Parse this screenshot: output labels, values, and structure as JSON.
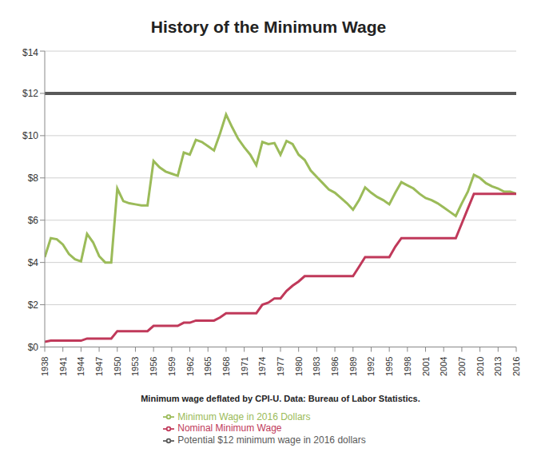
{
  "chart_data": {
    "type": "line",
    "title": "History of the Minimum Wage",
    "xlabel": "Minimum wage deflated by CPI-U. Data: Bureau of Labor Statistics.",
    "x": [
      1938,
      1939,
      1940,
      1941,
      1942,
      1943,
      1944,
      1945,
      1946,
      1947,
      1948,
      1949,
      1950,
      1951,
      1952,
      1953,
      1954,
      1955,
      1956,
      1957,
      1958,
      1959,
      1960,
      1961,
      1962,
      1963,
      1964,
      1965,
      1966,
      1967,
      1968,
      1969,
      1970,
      1971,
      1972,
      1973,
      1974,
      1975,
      1976,
      1977,
      1978,
      1979,
      1980,
      1981,
      1982,
      1983,
      1984,
      1985,
      1986,
      1987,
      1988,
      1989,
      1990,
      1991,
      1992,
      1993,
      1994,
      1995,
      1996,
      1997,
      1998,
      1999,
      2000,
      2001,
      2002,
      2003,
      2004,
      2005,
      2006,
      2007,
      2008,
      2009,
      2010,
      2011,
      2012,
      2013,
      2014,
      2015,
      2016
    ],
    "series": [
      {
        "name": "Potential $12 minimum wage in 2016 dollars",
        "color": "#595959",
        "values": [
          12,
          12,
          12,
          12,
          12,
          12,
          12,
          12,
          12,
          12,
          12,
          12,
          12,
          12,
          12,
          12,
          12,
          12,
          12,
          12,
          12,
          12,
          12,
          12,
          12,
          12,
          12,
          12,
          12,
          12,
          12,
          12,
          12,
          12,
          12,
          12,
          12,
          12,
          12,
          12,
          12,
          12,
          12,
          12,
          12,
          12,
          12,
          12,
          12,
          12,
          12,
          12,
          12,
          12,
          12,
          12,
          12,
          12,
          12,
          12,
          12,
          12,
          12,
          12,
          12,
          12,
          12,
          12,
          12,
          12,
          12,
          12,
          12,
          12,
          12,
          12,
          12,
          12,
          12
        ]
      },
      {
        "name": "Minimum Wage in 2016 Dollars",
        "color": "#9bbb59",
        "values": [
          4.25,
          5.15,
          5.1,
          4.85,
          4.4,
          4.15,
          4.05,
          5.35,
          4.95,
          4.3,
          4,
          4,
          7.5,
          6.9,
          6.8,
          6.75,
          6.7,
          6.7,
          8.8,
          8.5,
          8.3,
          8.2,
          8.1,
          9.2,
          9.1,
          9.8,
          9.7,
          9.5,
          9.3,
          10.1,
          11,
          10.4,
          9.85,
          9.45,
          9.1,
          8.6,
          9.7,
          9.6,
          9.65,
          9.1,
          9.75,
          9.6,
          9.1,
          8.85,
          8.35,
          8.05,
          7.75,
          7.45,
          7.3,
          7.05,
          6.8,
          6.5,
          6.95,
          7.55,
          7.3,
          7.1,
          6.95,
          6.75,
          7.3,
          7.8,
          7.65,
          7.5,
          7.25,
          7.05,
          6.95,
          6.8,
          6.6,
          6.4,
          6.2,
          6.8,
          7.35,
          8.15,
          8,
          7.75,
          7.6,
          7.5,
          7.35,
          7.35,
          7.25
        ]
      },
      {
        "name": "Nominal Minimum Wage",
        "color": "#c0395a",
        "values": [
          0.25,
          0.3,
          0.3,
          0.3,
          0.3,
          0.3,
          0.3,
          0.4,
          0.4,
          0.4,
          0.4,
          0.4,
          0.75,
          0.75,
          0.75,
          0.75,
          0.75,
          0.75,
          1,
          1,
          1,
          1,
          1,
          1.15,
          1.15,
          1.25,
          1.25,
          1.25,
          1.25,
          1.4,
          1.6,
          1.6,
          1.6,
          1.6,
          1.6,
          1.6,
          2,
          2.1,
          2.3,
          2.3,
          2.65,
          2.9,
          3.1,
          3.35,
          3.35,
          3.35,
          3.35,
          3.35,
          3.35,
          3.35,
          3.35,
          3.35,
          3.8,
          4.25,
          4.25,
          4.25,
          4.25,
          4.25,
          4.75,
          5.15,
          5.15,
          5.15,
          5.15,
          5.15,
          5.15,
          5.15,
          5.15,
          5.15,
          5.15,
          5.85,
          6.55,
          7.25,
          7.25,
          7.25,
          7.25,
          7.25,
          7.25,
          7.25,
          7.25
        ]
      }
    ],
    "xlim": [
      1938,
      2016
    ],
    "xticks": [
      1938,
      1941,
      1944,
      1947,
      1950,
      1953,
      1956,
      1959,
      1962,
      1965,
      1968,
      1971,
      1974,
      1977,
      1980,
      1983,
      1986,
      1989,
      1992,
      1995,
      1998,
      2001,
      2004,
      2007,
      2010,
      2013,
      2016
    ],
    "ylim": [
      0,
      14
    ],
    "yticks": [
      {
        "value": 0,
        "label": "$0"
      },
      {
        "value": 2,
        "label": "$2"
      },
      {
        "value": 4,
        "label": "$4"
      },
      {
        "value": 6,
        "label": "$6"
      },
      {
        "value": 8,
        "label": "$8"
      },
      {
        "value": 10,
        "label": "$10"
      },
      {
        "value": 12,
        "label": "$12"
      },
      {
        "value": 14,
        "label": "$14"
      }
    ],
    "grid": true,
    "legend": "bottom"
  }
}
